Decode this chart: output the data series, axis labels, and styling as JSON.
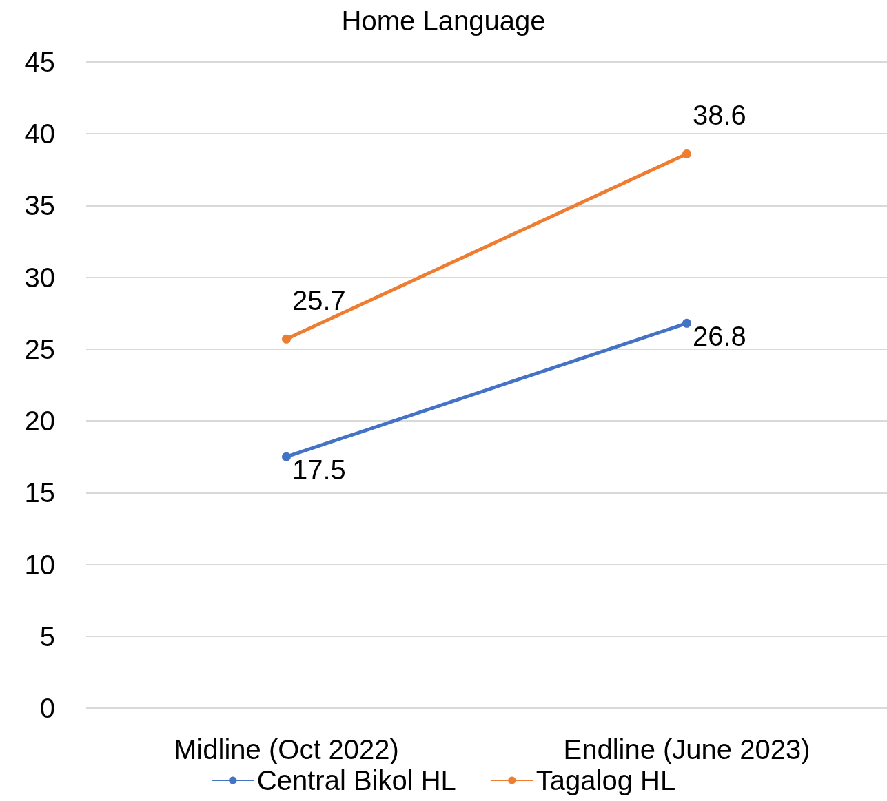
{
  "chart_data": {
    "type": "line",
    "title": "Home Language",
    "categories": [
      "Midline (Oct 2022)",
      "Endline (June 2023)"
    ],
    "series": [
      {
        "name": "Central Bikol HL",
        "color": "#4472c4",
        "values": [
          17.5,
          26.8
        ]
      },
      {
        "name": "Tagalog HL",
        "color": "#ed7d31",
        "values": [
          25.7,
          38.6
        ]
      }
    ],
    "ylim": [
      0,
      45
    ],
    "yticks": [
      0,
      5,
      10,
      15,
      20,
      25,
      30,
      35,
      40,
      45
    ],
    "grid": "y",
    "legend": "bottom",
    "marker": "circle",
    "line_style": "solid",
    "data_labels": true
  }
}
